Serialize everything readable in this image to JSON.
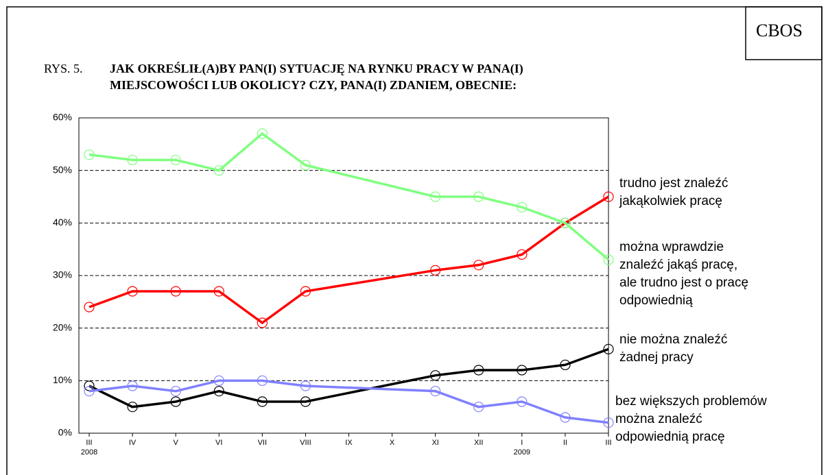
{
  "source": "CBOS",
  "figure_label": "RYS. 5.",
  "chart_data": {
    "type": "line",
    "title": "JAK OKREŚLIŁ(A)BY PAN(I) SYTUACJĘ NA RYNKU PRACY W PANA(I)\nMIEJSCOWOŚCI LUB OKOLICY? CZY, PANA(I) ZDANIEM, OBECNIE:",
    "categories": [
      "III",
      "IV",
      "V",
      "VI",
      "VII",
      "VIII",
      "IX",
      "X",
      "XI",
      "XII",
      "I",
      "II",
      "III"
    ],
    "category_years": [
      "2008",
      null,
      null,
      null,
      null,
      null,
      null,
      null,
      null,
      null,
      "2009",
      null,
      null
    ],
    "ylim": [
      0,
      60
    ],
    "yticks": [
      {
        "value": 0,
        "label": "0%"
      },
      {
        "value": 10,
        "label": "10%"
      },
      {
        "value": 20,
        "label": "20%"
      },
      {
        "value": 30,
        "label": "30%"
      },
      {
        "value": 40,
        "label": "40%"
      },
      {
        "value": 50,
        "label": "50%"
      },
      {
        "value": 60,
        "label": "60%"
      }
    ],
    "grid": true,
    "connect_gaps": true,
    "series": [
      {
        "name": "trudno jest znaleźć\njakąkolwiek pracę",
        "color": "#ff0000",
        "values": [
          24,
          27,
          27,
          27,
          21,
          27,
          null,
          null,
          31,
          32,
          34,
          40,
          45
        ]
      },
      {
        "name": "można wprawdzie\nznaleźć jakąś pracę,\nale trudno jest o pracę\nodpowiednią",
        "color": "#80ff80",
        "values": [
          53,
          52,
          52,
          50,
          57,
          51,
          null,
          null,
          45,
          45,
          43,
          40,
          33
        ]
      },
      {
        "name": "nie można znaleźć\nżadnej pracy",
        "color": "#000000",
        "values": [
          9,
          5,
          6,
          8,
          6,
          6,
          null,
          null,
          11,
          12,
          12,
          13,
          16
        ]
      },
      {
        "name": "bez większych problemów\nmożna znaleźć\nodpowiednią pracę",
        "color": "#8080ff",
        "values": [
          8,
          9,
          8,
          10,
          10,
          9,
          null,
          null,
          8,
          5,
          6,
          3,
          2
        ]
      }
    ]
  }
}
